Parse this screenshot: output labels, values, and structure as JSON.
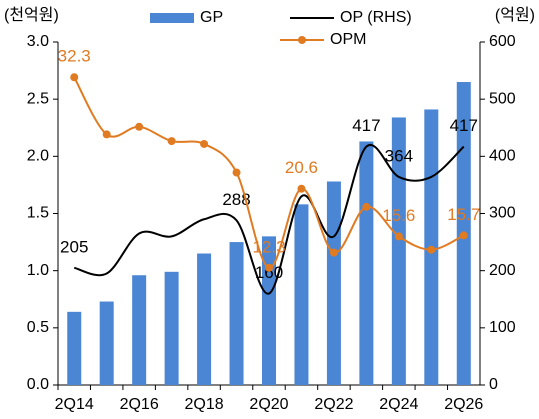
{
  "chart_data": {
    "type": "bar-line",
    "y_title": "(천억원)",
    "y2_title": "(억원)",
    "categories": [
      "2Q14",
      null,
      "2Q16",
      null,
      "2Q18",
      null,
      "2Q20",
      null,
      "2Q22",
      null,
      "2Q24",
      null,
      "2Q26"
    ],
    "ylim": [
      0,
      3.0
    ],
    "yticks": [
      {
        "value": 0,
        "label": "0.0"
      },
      0.5,
      {
        "value": 1,
        "label": "1.0"
      },
      1.5,
      {
        "value": 2,
        "label": "2.0"
      },
      2.5,
      {
        "value": 3,
        "label": "3.0"
      }
    ],
    "y2lim": [
      0,
      600
    ],
    "y2ticks": [
      0,
      100,
      200,
      300,
      400,
      500,
      600
    ],
    "y3lim": [
      0,
      36
    ],
    "legend": "top",
    "series": [
      {
        "name": "GP",
        "type": "bar",
        "color": "#4a86d4",
        "values": [
          0.64,
          0.73,
          0.96,
          0.99,
          1.15,
          1.25,
          1.3,
          1.58,
          1.78,
          2.13,
          2.34,
          2.41,
          2.65
        ]
      },
      {
        "name": "OP (RHS)",
        "type": "line",
        "axis": "y2",
        "color": "#000000",
        "values": [
          205,
          195,
          265,
          260,
          290,
          288,
          160,
          330,
          260,
          417,
          364,
          364,
          417
        ],
        "value_labels": [
          "205",
          null,
          null,
          null,
          null,
          "288",
          "160",
          null,
          null,
          "417",
          "364",
          null,
          "417"
        ],
        "label_color": "#000000"
      },
      {
        "name": "OPM",
        "type": "line",
        "axis": "y3",
        "color": "#e07b22",
        "marker": "circle",
        "values": [
          32.3,
          26.3,
          27.1,
          25.6,
          25.3,
          22.3,
          12.3,
          20.6,
          13.9,
          18.7,
          15.6,
          14.2,
          15.7
        ],
        "value_labels": [
          "32.3",
          null,
          null,
          null,
          null,
          null,
          "12.3",
          "20.6",
          null,
          null,
          "15.6",
          null,
          "15.7"
        ],
        "label_color": "#e07b22"
      }
    ]
  }
}
